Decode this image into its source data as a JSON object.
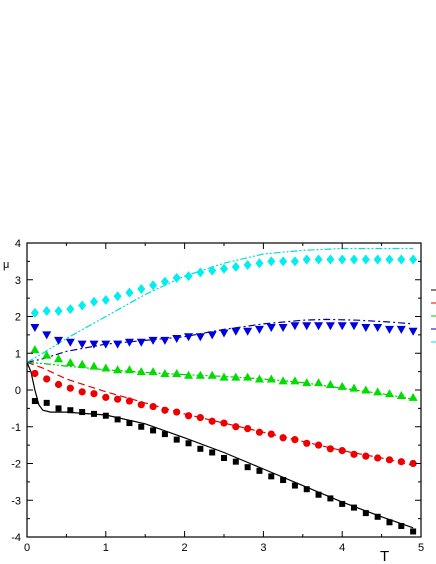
{
  "chart_data": {
    "type": "scatter",
    "title": "",
    "xlabel": "T",
    "ylabel": "μ",
    "xlim": [
      0,
      5
    ],
    "ylim": [
      -4,
      4
    ],
    "xticks": [
      "0",
      "1",
      "2",
      "3",
      "4",
      "5"
    ],
    "yticks": [
      "-4",
      "-3",
      "-2",
      "-1",
      "0",
      "1",
      "2",
      "3",
      "4"
    ],
    "grid": false,
    "legend": "none",
    "series": [
      {
        "marker": "square",
        "color": "#000000",
        "points": [
          [
            0.1,
            -0.3
          ],
          [
            0.25,
            -0.35
          ],
          [
            0.4,
            -0.5
          ],
          [
            0.55,
            -0.55
          ],
          [
            0.7,
            -0.6
          ],
          [
            0.85,
            -0.65
          ],
          [
            1.0,
            -0.7
          ],
          [
            1.15,
            -0.8
          ],
          [
            1.3,
            -0.9
          ],
          [
            1.45,
            -1.0
          ],
          [
            1.6,
            -1.1
          ],
          [
            1.75,
            -1.2
          ],
          [
            1.9,
            -1.35
          ],
          [
            2.05,
            -1.45
          ],
          [
            2.2,
            -1.6
          ],
          [
            2.35,
            -1.7
          ],
          [
            2.5,
            -1.85
          ],
          [
            2.65,
            -1.95
          ],
          [
            2.8,
            -2.1
          ],
          [
            2.95,
            -2.2
          ],
          [
            3.1,
            -2.35
          ],
          [
            3.25,
            -2.45
          ],
          [
            3.4,
            -2.6
          ],
          [
            3.55,
            -2.7
          ],
          [
            3.7,
            -2.85
          ],
          [
            3.85,
            -2.95
          ],
          [
            4.0,
            -3.1
          ],
          [
            4.15,
            -3.2
          ],
          [
            4.3,
            -3.35
          ],
          [
            4.45,
            -3.45
          ],
          [
            4.6,
            -3.6
          ],
          [
            4.75,
            -3.7
          ],
          [
            4.9,
            -3.85
          ]
        ]
      },
      {
        "marker": "circle",
        "color": "#ee0000",
        "points": [
          [
            0.1,
            0.45
          ],
          [
            0.25,
            0.3
          ],
          [
            0.4,
            0.15
          ],
          [
            0.55,
            0.05
          ],
          [
            0.7,
            -0.05
          ],
          [
            0.85,
            -0.1
          ],
          [
            1.0,
            -0.2
          ],
          [
            1.15,
            -0.25
          ],
          [
            1.3,
            -0.3
          ],
          [
            1.45,
            -0.4
          ],
          [
            1.6,
            -0.45
          ],
          [
            1.75,
            -0.55
          ],
          [
            1.9,
            -0.6
          ],
          [
            2.05,
            -0.7
          ],
          [
            2.2,
            -0.75
          ],
          [
            2.35,
            -0.85
          ],
          [
            2.5,
            -0.9
          ],
          [
            2.65,
            -1.0
          ],
          [
            2.8,
            -1.05
          ],
          [
            2.95,
            -1.15
          ],
          [
            3.1,
            -1.2
          ],
          [
            3.25,
            -1.3
          ],
          [
            3.4,
            -1.35
          ],
          [
            3.55,
            -1.45
          ],
          [
            3.7,
            -1.5
          ],
          [
            3.85,
            -1.6
          ],
          [
            4.0,
            -1.65
          ],
          [
            4.15,
            -1.75
          ],
          [
            4.3,
            -1.8
          ],
          [
            4.45,
            -1.85
          ],
          [
            4.6,
            -1.9
          ],
          [
            4.75,
            -1.95
          ],
          [
            4.9,
            -2.0
          ]
        ]
      },
      {
        "marker": "triangle-up",
        "color": "#00dd00",
        "points": [
          [
            0.1,
            1.1
          ],
          [
            0.25,
            0.95
          ],
          [
            0.4,
            0.85
          ],
          [
            0.55,
            0.75
          ],
          [
            0.7,
            0.7
          ],
          [
            0.85,
            0.65
          ],
          [
            1.0,
            0.6
          ],
          [
            1.15,
            0.55
          ],
          [
            1.3,
            0.55
          ],
          [
            1.45,
            0.5
          ],
          [
            1.6,
            0.5
          ],
          [
            1.75,
            0.45
          ],
          [
            1.9,
            0.45
          ],
          [
            2.05,
            0.4
          ],
          [
            2.2,
            0.4
          ],
          [
            2.35,
            0.4
          ],
          [
            2.5,
            0.35
          ],
          [
            2.65,
            0.35
          ],
          [
            2.8,
            0.35
          ],
          [
            2.95,
            0.3
          ],
          [
            3.1,
            0.3
          ],
          [
            3.25,
            0.25
          ],
          [
            3.4,
            0.25
          ],
          [
            3.55,
            0.2
          ],
          [
            3.7,
            0.2
          ],
          [
            3.85,
            0.15
          ],
          [
            4.0,
            0.1
          ],
          [
            4.15,
            0.05
          ],
          [
            4.3,
            0.0
          ],
          [
            4.45,
            -0.05
          ],
          [
            4.6,
            -0.1
          ],
          [
            4.75,
            -0.15
          ],
          [
            4.9,
            -0.2
          ]
        ]
      },
      {
        "marker": "triangle-down",
        "color": "#0000dd",
        "points": [
          [
            0.1,
            1.7
          ],
          [
            0.25,
            1.5
          ],
          [
            0.4,
            1.35
          ],
          [
            0.55,
            1.3
          ],
          [
            0.7,
            1.25
          ],
          [
            0.85,
            1.25
          ],
          [
            1.0,
            1.25
          ],
          [
            1.15,
            1.25
          ],
          [
            1.3,
            1.3
          ],
          [
            1.45,
            1.3
          ],
          [
            1.6,
            1.35
          ],
          [
            1.75,
            1.35
          ],
          [
            1.9,
            1.4
          ],
          [
            2.05,
            1.45
          ],
          [
            2.2,
            1.45
          ],
          [
            2.35,
            1.5
          ],
          [
            2.5,
            1.55
          ],
          [
            2.65,
            1.6
          ],
          [
            2.8,
            1.6
          ],
          [
            2.95,
            1.65
          ],
          [
            3.1,
            1.7
          ],
          [
            3.25,
            1.7
          ],
          [
            3.4,
            1.75
          ],
          [
            3.55,
            1.75
          ],
          [
            3.7,
            1.75
          ],
          [
            3.85,
            1.75
          ],
          [
            4.0,
            1.75
          ],
          [
            4.15,
            1.75
          ],
          [
            4.3,
            1.7
          ],
          [
            4.45,
            1.7
          ],
          [
            4.6,
            1.65
          ],
          [
            4.75,
            1.65
          ],
          [
            4.9,
            1.6
          ]
        ]
      },
      {
        "marker": "diamond",
        "color": "#00eeee",
        "points": [
          [
            0.1,
            2.1
          ],
          [
            0.25,
            2.15
          ],
          [
            0.4,
            2.15
          ],
          [
            0.55,
            2.2
          ],
          [
            0.7,
            2.3
          ],
          [
            0.85,
            2.4
          ],
          [
            1.0,
            2.45
          ],
          [
            1.15,
            2.55
          ],
          [
            1.3,
            2.65
          ],
          [
            1.45,
            2.75
          ],
          [
            1.6,
            2.85
          ],
          [
            1.75,
            2.95
          ],
          [
            1.9,
            3.05
          ],
          [
            2.05,
            3.1
          ],
          [
            2.2,
            3.2
          ],
          [
            2.35,
            3.25
          ],
          [
            2.5,
            3.3
          ],
          [
            2.65,
            3.35
          ],
          [
            2.8,
            3.4
          ],
          [
            2.95,
            3.45
          ],
          [
            3.1,
            3.5
          ],
          [
            3.25,
            3.5
          ],
          [
            3.4,
            3.5
          ],
          [
            3.55,
            3.55
          ],
          [
            3.7,
            3.55
          ],
          [
            3.85,
            3.55
          ],
          [
            4.0,
            3.55
          ],
          [
            4.15,
            3.55
          ],
          [
            4.3,
            3.55
          ],
          [
            4.45,
            3.55
          ],
          [
            4.6,
            3.55
          ],
          [
            4.75,
            3.55
          ],
          [
            4.9,
            3.55
          ]
        ]
      }
    ],
    "curves": [
      {
        "style": "solid",
        "color": "#000000",
        "points": [
          [
            0,
            0.75
          ],
          [
            0.05,
            0.5
          ],
          [
            0.1,
            0.0
          ],
          [
            0.15,
            -0.4
          ],
          [
            0.2,
            -0.55
          ],
          [
            0.3,
            -0.6
          ],
          [
            0.5,
            -0.6
          ],
          [
            1.0,
            -0.68
          ],
          [
            1.5,
            -0.92
          ],
          [
            2.0,
            -1.3
          ],
          [
            2.5,
            -1.7
          ],
          [
            3.0,
            -2.15
          ],
          [
            3.5,
            -2.6
          ],
          [
            4.0,
            -3.05
          ],
          [
            4.5,
            -3.45
          ],
          [
            4.9,
            -3.75
          ]
        ]
      },
      {
        "style": "dashed",
        "color": "#ee0000",
        "points": [
          [
            0,
            0.75
          ],
          [
            0.2,
            0.6
          ],
          [
            0.5,
            0.3
          ],
          [
            1.0,
            -0.05
          ],
          [
            1.5,
            -0.35
          ],
          [
            2.0,
            -0.65
          ],
          [
            2.5,
            -0.9
          ],
          [
            3.0,
            -1.15
          ],
          [
            3.5,
            -1.4
          ],
          [
            4.0,
            -1.65
          ],
          [
            4.5,
            -1.85
          ],
          [
            4.9,
            -2.05
          ]
        ]
      },
      {
        "style": "dash-dot-dot",
        "color": "#00cc00",
        "points": [
          [
            0,
            0.75
          ],
          [
            0.2,
            0.72
          ],
          [
            0.5,
            0.65
          ],
          [
            1.0,
            0.55
          ],
          [
            1.5,
            0.48
          ],
          [
            2.0,
            0.42
          ],
          [
            2.5,
            0.37
          ],
          [
            3.0,
            0.3
          ],
          [
            3.5,
            0.2
          ],
          [
            4.0,
            0.05
          ],
          [
            4.5,
            -0.1
          ],
          [
            4.9,
            -0.25
          ]
        ]
      },
      {
        "style": "dash-dot",
        "color": "#0000aa",
        "points": [
          [
            0,
            0.75
          ],
          [
            0.2,
            0.85
          ],
          [
            0.5,
            1.05
          ],
          [
            1.0,
            1.25
          ],
          [
            1.5,
            1.35
          ],
          [
            2.0,
            1.45
          ],
          [
            2.5,
            1.65
          ],
          [
            3.0,
            1.8
          ],
          [
            3.5,
            1.9
          ],
          [
            3.8,
            1.92
          ],
          [
            4.2,
            1.9
          ],
          [
            4.6,
            1.85
          ],
          [
            4.9,
            1.8
          ]
        ]
      },
      {
        "style": "dash-dot-dot",
        "color": "#00dddd",
        "points": [
          [
            0,
            0.75
          ],
          [
            0.2,
            1.0
          ],
          [
            0.5,
            1.4
          ],
          [
            1.0,
            2.0
          ],
          [
            1.5,
            2.6
          ],
          [
            2.0,
            3.1
          ],
          [
            2.5,
            3.45
          ],
          [
            3.0,
            3.7
          ],
          [
            3.5,
            3.8
          ],
          [
            4.0,
            3.85
          ],
          [
            4.5,
            3.85
          ],
          [
            4.9,
            3.85
          ]
        ]
      }
    ]
  }
}
